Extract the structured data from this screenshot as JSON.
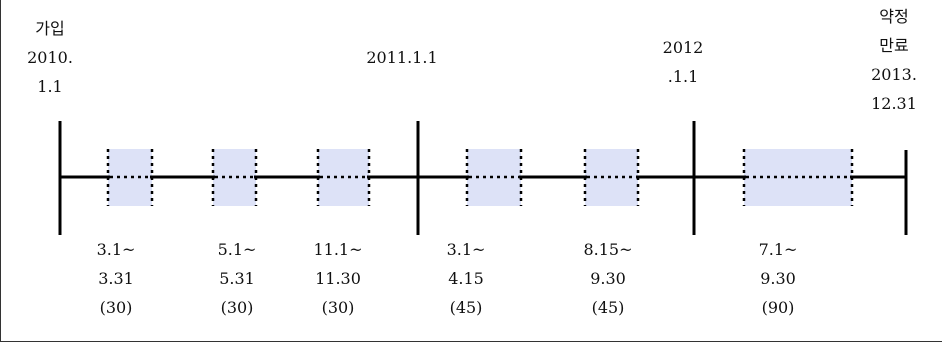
{
  "colors": {
    "line": "#000000",
    "period_fill": "#dde2f7",
    "period_dots": "#000000"
  },
  "milestones": [
    {
      "id": "join",
      "lines": [
        "가입",
        "2010.",
        "1.1"
      ]
    },
    {
      "id": "year-2011",
      "lines": [
        "2011.1.1"
      ]
    },
    {
      "id": "year-2012",
      "lines": [
        "2012",
        ".1.1"
      ]
    },
    {
      "id": "contract-end",
      "lines": [
        "약정",
        "만료",
        "2013.",
        "12.31"
      ]
    }
  ],
  "periods": [
    {
      "lines": [
        "3.1~",
        "3.31",
        "(30)"
      ]
    },
    {
      "lines": [
        "5.1~",
        "5.31",
        "(30)"
      ]
    },
    {
      "lines": [
        "11.1~",
        "11.30",
        "(30)"
      ]
    },
    {
      "lines": [
        "3.1~",
        "4.15",
        "(45)"
      ]
    },
    {
      "lines": [
        "8.15~",
        "9.30",
        "(45)"
      ]
    },
    {
      "lines": [
        "7.1~",
        "9.30",
        "(90)"
      ]
    }
  ]
}
